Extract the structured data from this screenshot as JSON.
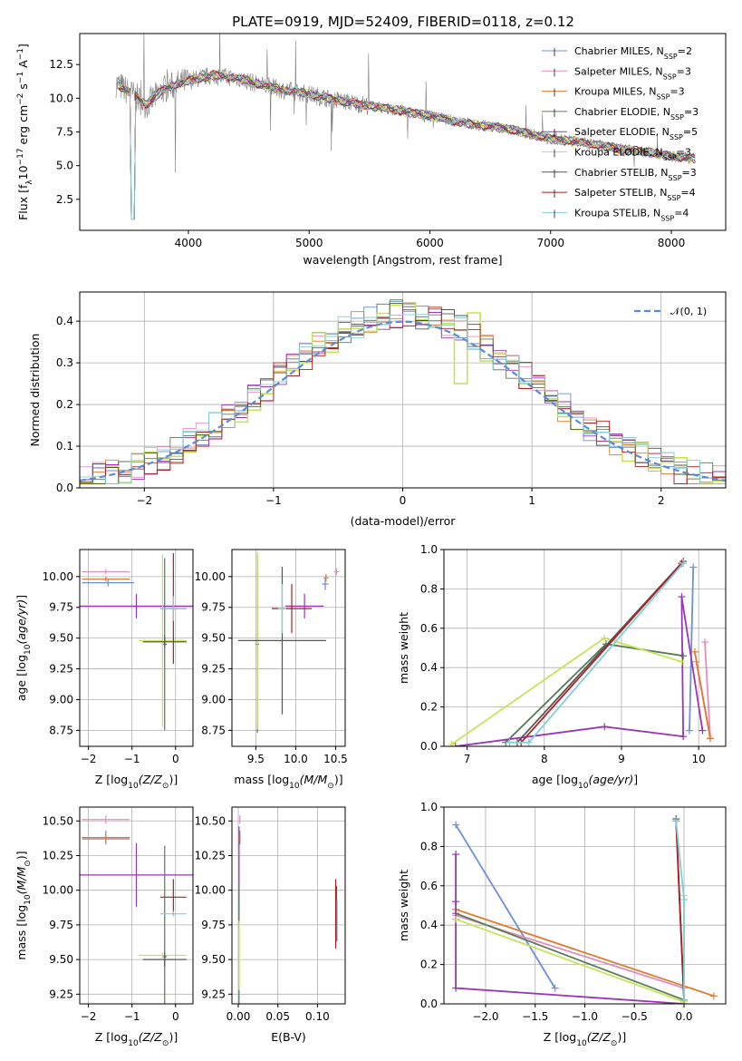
{
  "figure": {
    "title": "PLATE=0919, MJD=52409, FIBERID=0118, z=0.12"
  },
  "colors": {
    "Chabrier MILES": "#6b8fd8",
    "Salpeter MILES": "#e48cbc",
    "Kroupa MILES": "#e07a30",
    "Chabrier ELODIE": "#5a7a5a",
    "Salpeter ELODIE": "#9a35b5",
    "Kroupa ELODIE": "#c8e35a",
    "Chabrier STELIB": "#555555",
    "Salpeter STELIB": "#b01e1e",
    "Kroupa STELIB": "#7fd0d8",
    "data": "#808080",
    "gauss": "#5b8bd6"
  },
  "chart_data": [
    {
      "id": "spectrum",
      "type": "line",
      "xlabel": "wavelength [Angstrom, rest frame]",
      "ylabel": "Flux [f_λ10^-17 erg cm^-2 s^-1 A^-1]",
      "xlim": [
        3100,
        8450
      ],
      "ylim": [
        0.2,
        14.8
      ],
      "xticks": [
        4000,
        5000,
        6000,
        7000,
        8000
      ],
      "yticks": [
        2.5,
        5.0,
        7.5,
        10.0,
        12.5
      ],
      "legend_position": "top-right",
      "legend": [
        {
          "name": "Chabrier MILES",
          "nssp": "2"
        },
        {
          "name": "Salpeter MILES",
          "nssp": "3"
        },
        {
          "name": "Kroupa MILES",
          "nssp": "3"
        },
        {
          "name": "Chabrier ELODIE",
          "nssp": "3"
        },
        {
          "name": "Salpeter ELODIE",
          "nssp": "5"
        },
        {
          "name": "Kroupa ELODIE",
          "nssp": "3"
        },
        {
          "name": "Chabrier STELIB",
          "nssp": "3"
        },
        {
          "name": "Salpeter STELIB",
          "nssp": "4"
        },
        {
          "name": "Kroupa STELIB",
          "nssp": "4"
        }
      ],
      "continuum": {
        "x": [
          3400,
          3550,
          3650,
          3800,
          4000,
          4200,
          4400,
          4600,
          4800,
          5000,
          5200,
          5400,
          5600,
          5800,
          6000,
          6200,
          6400,
          6600,
          6800,
          7000,
          7200,
          7400,
          7600,
          7800,
          8000,
          8200
        ],
        "y": [
          11.1,
          10.2,
          9.5,
          10.7,
          11.3,
          11.7,
          11.5,
          11.0,
          10.6,
          10.3,
          9.9,
          9.6,
          9.3,
          9.0,
          8.7,
          8.3,
          8.0,
          7.8,
          7.4,
          7.0,
          6.8,
          6.5,
          6.2,
          6.0,
          5.7,
          5.5
        ]
      }
    },
    {
      "id": "residuals",
      "type": "histogram",
      "xlabel": "(data-model)/error",
      "ylabel": "Normed distribution",
      "xlim": [
        -2.5,
        2.5
      ],
      "ylim": [
        0,
        0.47
      ],
      "xticks": [
        -2,
        -1,
        0,
        1,
        2
      ],
      "yticks": [
        0.0,
        0.1,
        0.2,
        0.3,
        0.4
      ],
      "bin_width": 0.1,
      "gauss_label": "𝒩(0, 1)",
      "legend_position": "top-right",
      "grid": true
    },
    {
      "id": "age_vs_Z",
      "type": "scatter",
      "xlabel": "Z [log10(Z/Z☉)]",
      "ylabel": "age [log10(age/yr)]",
      "xlim": [
        -2.2,
        0.4
      ],
      "ylim": [
        8.62,
        10.22
      ],
      "xticks": [
        -2,
        -1,
        0
      ],
      "yticks": [
        8.75,
        9.0,
        9.25,
        9.5,
        9.75,
        10.0
      ],
      "grid": true,
      "points": [
        {
          "model": "Chabrier MILES",
          "x": -1.55,
          "y": 9.95,
          "xerr": 0.6,
          "yerr": 0.03
        },
        {
          "model": "Salpeter MILES",
          "x": -1.6,
          "y": 10.04,
          "xerr": 0.55,
          "yerr": 0.02
        },
        {
          "model": "Kroupa MILES",
          "x": -1.6,
          "y": 9.98,
          "xerr": 0.55,
          "yerr": 0.02
        },
        {
          "model": "Salpeter ELODIE",
          "x": -0.9,
          "y": 9.76,
          "xerr": 1.3,
          "yerr": 0.1
        },
        {
          "model": "Chabrier ELODIE",
          "x": -0.25,
          "y": 9.45,
          "xerr": 0.05,
          "yerr": 0.7
        },
        {
          "model": "Kroupa ELODIE",
          "x": -0.3,
          "y": 9.48,
          "xerr": 0.55,
          "yerr": 0.7
        },
        {
          "model": "Chabrier STELIB",
          "x": -0.25,
          "y": 9.47,
          "xerr": 0.5,
          "yerr": 0.05
        },
        {
          "model": "Salpeter STELIB",
          "x": -0.05,
          "y": 9.74,
          "xerr": 0.3,
          "yerr": 0.45
        },
        {
          "model": "Kroupa STELIB",
          "x": -0.05,
          "y": 9.74,
          "xerr": 0.3,
          "yerr": 0.1
        }
      ]
    },
    {
      "id": "age_vs_mass",
      "type": "scatter",
      "xlabel": "mass [log10(M/M☉)]",
      "ylabel": "",
      "xlim": [
        9.2,
        10.62
      ],
      "ylim": [
        8.62,
        10.22
      ],
      "xticks": [
        9.5,
        10.0,
        10.5
      ],
      "yticks": [
        8.75,
        9.0,
        9.25,
        9.5,
        9.75,
        10.0
      ],
      "grid": true,
      "points": [
        {
          "model": "Chabrier MILES",
          "x": 10.37,
          "y": 9.94,
          "xerr": 0.04,
          "yerr": 0.05
        },
        {
          "model": "Salpeter MILES",
          "x": 10.51,
          "y": 10.04,
          "xerr": 0.03,
          "yerr": 0.03
        },
        {
          "model": "Kroupa MILES",
          "x": 10.38,
          "y": 9.99,
          "xerr": 0.03,
          "yerr": 0.03
        },
        {
          "model": "Salpeter ELODIE",
          "x": 10.11,
          "y": 9.76,
          "xerr": 0.24,
          "yerr": 0.1
        },
        {
          "model": "Chabrier ELODIE",
          "x": 9.52,
          "y": 9.45,
          "xerr": 0.02,
          "yerr": 0.72
        },
        {
          "model": "Kroupa ELODIE",
          "x": 9.52,
          "y": 9.48,
          "xerr": 0.02,
          "yerr": 0.72
        },
        {
          "model": "Chabrier STELIB",
          "x": 9.83,
          "y": 9.48,
          "xerr": 0.55,
          "yerr": 0.6
        },
        {
          "model": "Salpeter STELIB",
          "x": 9.95,
          "y": 9.74,
          "xerr": 0.25,
          "yerr": 0.2
        },
        {
          "model": "Kroupa STELIB",
          "x": 9.83,
          "y": 9.74,
          "xerr": 0.05,
          "yerr": 0.2
        }
      ]
    },
    {
      "id": "weight_vs_age",
      "type": "line",
      "xlabel": "age [log10(age/yr)]",
      "ylabel": "mass weight",
      "xlim": [
        6.7,
        10.35
      ],
      "ylim": [
        0,
        1.0
      ],
      "xticks": [
        7,
        8,
        9,
        10
      ],
      "yticks": [
        0.0,
        0.2,
        0.4,
        0.6,
        0.8,
        1.0
      ],
      "grid": true,
      "series": [
        {
          "model": "Chabrier MILES",
          "x": [
            9.88,
            9.93
          ],
          "y": [
            0.08,
            0.91
          ]
        },
        {
          "model": "Salpeter MILES",
          "x": [
            10.08,
            10.15,
            9.97
          ],
          "y": [
            0.53,
            0.04,
            0.43
          ]
        },
        {
          "model": "Kroupa MILES",
          "x": [
            9.95,
            10.15
          ],
          "y": [
            0.48,
            0.04
          ]
        },
        {
          "model": "Chabrier ELODIE",
          "x": [
            7.5,
            8.8,
            9.8
          ],
          "y": [
            0.02,
            0.52,
            0.46
          ]
        },
        {
          "model": "Salpeter ELODIE",
          "x": [
            6.85,
            8.78,
            9.8,
            9.78,
            10.05
          ],
          "y": [
            0.0,
            0.1,
            0.05,
            0.76,
            0.08
          ]
        },
        {
          "model": "Kroupa ELODIE",
          "x": [
            6.8,
            8.78,
            9.78
          ],
          "y": [
            0.01,
            0.55,
            0.43
          ]
        },
        {
          "model": "Chabrier STELIB",
          "x": [
            7.65,
            9.8
          ],
          "y": [
            0.02,
            0.94
          ]
        },
        {
          "model": "Salpeter STELIB",
          "x": [
            7.7,
            9.78
          ],
          "y": [
            0.02,
            0.93
          ]
        },
        {
          "model": "Kroupa STELIB",
          "x": [
            7.55,
            7.8,
            9.8
          ],
          "y": [
            0.02,
            0.02,
            0.93
          ]
        }
      ]
    },
    {
      "id": "mass_vs_Z",
      "type": "scatter",
      "xlabel": "Z [log10(Z/Z☉)]",
      "ylabel": "mass [log10(M/M☉)]",
      "xlim": [
        -2.2,
        0.4
      ],
      "ylim": [
        9.18,
        10.6
      ],
      "xticks": [
        -2,
        -1,
        0
      ],
      "yticks": [
        9.25,
        9.5,
        9.75,
        10.0,
        10.25,
        10.5
      ],
      "grid": true,
      "points": [
        {
          "model": "Chabrier MILES",
          "x": -1.6,
          "y": 10.38,
          "xerr": 0.55,
          "yerr": 0.05
        },
        {
          "model": "Salpeter MILES",
          "x": -1.6,
          "y": 10.51,
          "xerr": 0.55,
          "yerr": 0.03
        },
        {
          "model": "Kroupa MILES",
          "x": -1.6,
          "y": 10.37,
          "xerr": 0.55,
          "yerr": 0.03
        },
        {
          "model": "Salpeter ELODIE",
          "x": -0.9,
          "y": 10.11,
          "xerr": 1.3,
          "yerr": 0.23
        },
        {
          "model": "Chabrier ELODIE",
          "x": -0.25,
          "y": 9.52,
          "xerr": 0.05,
          "yerr": 0.8
        },
        {
          "model": "Kroupa ELODIE",
          "x": -0.3,
          "y": 9.53,
          "xerr": 0.55,
          "yerr": 0.02
        },
        {
          "model": "Chabrier STELIB",
          "x": -0.25,
          "y": 9.5,
          "xerr": 0.5,
          "yerr": 0.05
        },
        {
          "model": "Salpeter STELIB",
          "x": -0.05,
          "y": 9.95,
          "xerr": 0.3,
          "yerr": 0.13
        },
        {
          "model": "Kroupa STELIB",
          "x": -0.05,
          "y": 9.83,
          "xerr": 0.3,
          "yerr": 0.02
        }
      ]
    },
    {
      "id": "mass_vs_ebv",
      "type": "scatter",
      "xlabel": "E(B-V)",
      "ylabel": "",
      "xlim": [
        -0.008,
        0.135
      ],
      "ylim": [
        9.18,
        10.6
      ],
      "xticks": [
        0.0,
        0.05,
        0.1
      ],
      "yticks": [
        9.25,
        9.5,
        9.75,
        10.0,
        10.25,
        10.5
      ],
      "grid": true,
      "points": [
        {
          "model": "Chabrier MILES",
          "x": 0.002,
          "y": 10.38,
          "xerr": 0.0,
          "yerr": 0.05
        },
        {
          "model": "Salpeter MILES",
          "x": 0.002,
          "y": 10.51,
          "xerr": 0.0,
          "yerr": 0.03
        },
        {
          "model": "Kroupa MILES",
          "x": 0.002,
          "y": 10.37,
          "xerr": 0.0,
          "yerr": 0.03
        },
        {
          "model": "Salpeter ELODIE",
          "x": 0.001,
          "y": 10.11,
          "xerr": 0.0,
          "yerr": 0.35
        },
        {
          "model": "Chabrier ELODIE",
          "x": 0.001,
          "y": 9.52,
          "xerr": 0.0,
          "yerr": 0.5
        },
        {
          "model": "Kroupa ELODIE",
          "x": 0.001,
          "y": 9.53,
          "xerr": 0.0,
          "yerr": 0.25
        },
        {
          "model": "Chabrier STELIB",
          "x": 0.124,
          "y": 9.83,
          "xerr": 0.0,
          "yerr": 0.2
        },
        {
          "model": "Salpeter STELIB",
          "x": 0.123,
          "y": 9.83,
          "xerr": 0.0,
          "yerr": 0.25
        },
        {
          "model": "Kroupa STELIB",
          "x": 0.125,
          "y": 9.78,
          "xerr": 0.0,
          "yerr": 0.15
        }
      ]
    },
    {
      "id": "weight_vs_Z",
      "type": "line",
      "xlabel": "Z [log10(Z/Z☉)]",
      "ylabel": "mass weight",
      "xlim": [
        -2.42,
        0.42
      ],
      "ylim": [
        0,
        1.0
      ],
      "xticks": [
        -2.0,
        -1.5,
        -1.0,
        -0.5,
        0.0
      ],
      "yticks": [
        0.0,
        0.2,
        0.4,
        0.6,
        0.8,
        1.0
      ],
      "grid": true,
      "series": [
        {
          "model": "Chabrier MILES",
          "x": [
            -2.3,
            -1.3
          ],
          "y": [
            0.91,
            0.08
          ]
        },
        {
          "model": "Salpeter MILES",
          "x": [
            -2.3,
            0.0
          ],
          "y": [
            0.45,
            0.08
          ]
        },
        {
          "model": "Kroupa MILES",
          "x": [
            -2.3,
            0.3
          ],
          "y": [
            0.48,
            0.04
          ]
        },
        {
          "model": "Chabrier ELODIE",
          "x": [
            -2.3,
            0.0
          ],
          "y": [
            0.46,
            0.02
          ]
        },
        {
          "model": "Salpeter ELODIE",
          "x": [
            -2.3,
            -2.3,
            -2.3,
            -2.3,
            0.0
          ],
          "y": [
            0.76,
            0.52,
            0.43,
            0.08,
            0.0
          ]
        },
        {
          "model": "Kroupa ELODIE",
          "x": [
            -2.3,
            0.0,
            0.0
          ],
          "y": [
            0.43,
            0.01,
            0.55
          ]
        },
        {
          "model": "Chabrier STELIB",
          "x": [
            -0.08,
            0.0
          ],
          "y": [
            0.94,
            0.02
          ]
        },
        {
          "model": "Salpeter STELIB",
          "x": [
            -0.08,
            0.0
          ],
          "y": [
            0.93,
            0.02
          ]
        },
        {
          "model": "Kroupa STELIB",
          "x": [
            -0.08,
            0.0,
            0.0
          ],
          "y": [
            0.93,
            0.53,
            0.02
          ]
        }
      ]
    }
  ]
}
